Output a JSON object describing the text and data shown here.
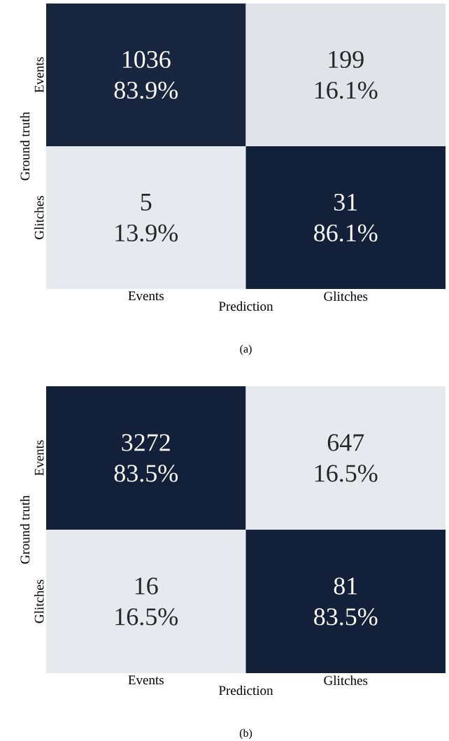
{
  "chart_data": [
    {
      "type": "heatmap",
      "categories": [
        "Events",
        "Glitches"
      ],
      "y_categories": [
        "Events",
        "Glitches"
      ],
      "cells": [
        [
          83.9,
          16.1
        ],
        [
          13.9,
          86.1
        ]
      ],
      "cell_labels": [
        [
          "83.9%",
          "16.1%"
        ],
        [
          "13.9%",
          "86.1%"
        ]
      ],
      "xlabel": "Prediction",
      "ylabel": "Ground truth",
      "annotations": [
        "1036",
        "199",
        "5",
        "31",
        "(a)"
      ],
      "colors": [
        "#e6e9ed",
        "#13203a"
      ]
    },
    {
      "type": "heatmap",
      "categories": [
        "Events",
        "Glitches"
      ],
      "y_categories": [
        "Events",
        "Glitches"
      ],
      "cells": [
        [
          83.5,
          16.5
        ],
        [
          16.5,
          83.5
        ]
      ],
      "cell_labels": [
        [
          "83.5%",
          "16.5%"
        ],
        [
          "16.5%",
          "83.5%"
        ]
      ],
      "xlabel": "Prediction",
      "ylabel": "Ground truth",
      "annotations": [
        "3272",
        "647",
        "16",
        "81",
        "(b)"
      ],
      "colors": [
        "#e6e9ed",
        "#13203a"
      ]
    }
  ]
}
